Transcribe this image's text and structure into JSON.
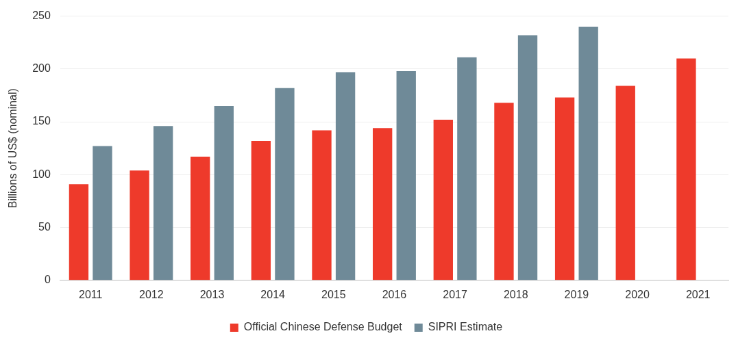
{
  "chart_data": {
    "type": "bar",
    "ylabel": "Billions of US$ (nominal)",
    "categories": [
      "2011",
      "2012",
      "2013",
      "2014",
      "2015",
      "2016",
      "2017",
      "2018",
      "2019",
      "2020",
      "2021"
    ],
    "series": [
      {
        "name": "Official Chinese Defense Budget",
        "color": "#ee3a2b",
        "values": [
          91,
          104,
          117,
          132,
          142,
          144,
          152,
          168,
          173,
          184,
          210
        ]
      },
      {
        "name": "SIPRI Estimate",
        "color": "#6f8a98",
        "values": [
          127,
          146,
          165,
          182,
          197,
          198,
          211,
          232,
          240,
          null,
          null
        ]
      }
    ],
    "ylim": [
      0,
      250
    ],
    "yticks": [
      0,
      50,
      100,
      150,
      200,
      250
    ],
    "grid": "y",
    "legend": "bottom"
  }
}
